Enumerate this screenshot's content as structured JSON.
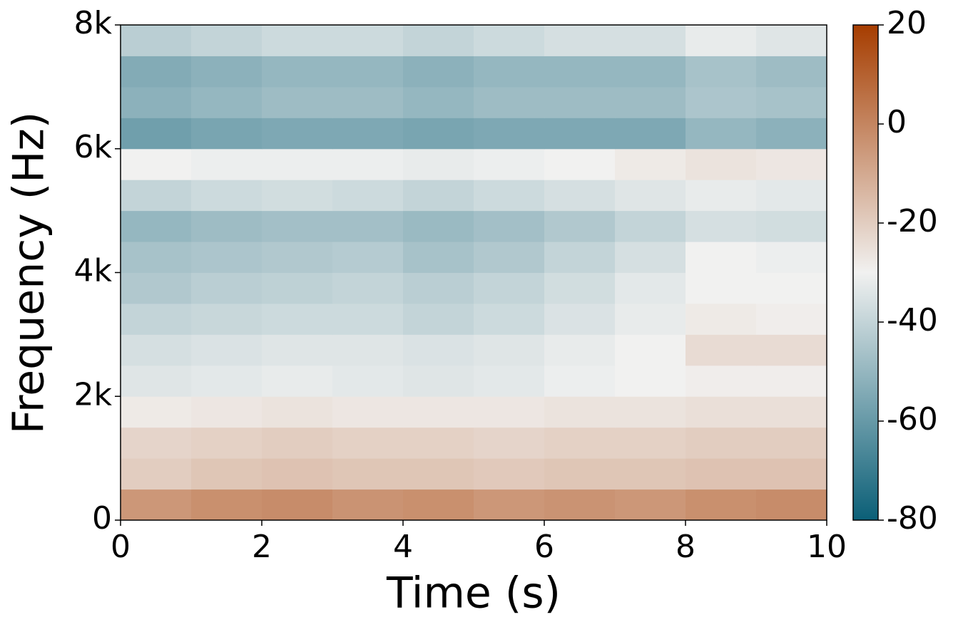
{
  "chart_data": {
    "type": "heatmap",
    "xlabel": "Time (s)",
    "ylabel": "Frequency (Hz)",
    "x": [
      0.5,
      1.5,
      2.5,
      3.5,
      4.5,
      5.5,
      6.5,
      7.5,
      8.5,
      9.5
    ],
    "y": [
      250,
      750,
      1250,
      1750,
      2250,
      2750,
      3250,
      3750,
      4250,
      4750,
      5250,
      5750,
      6250,
      6750,
      7250,
      7750
    ],
    "z": [
      [
        -5,
        -3,
        -2,
        -4,
        -3,
        -5,
        -4,
        -5,
        -3,
        -2
      ],
      [
        -20,
        -18,
        -17,
        -18,
        -18,
        -19,
        -18,
        -18,
        -17,
        -17
      ],
      [
        -22,
        -21,
        -20,
        -21,
        -21,
        -22,
        -21,
        -21,
        -20,
        -20
      ],
      [
        -28,
        -27,
        -26,
        -27,
        -27,
        -27,
        -26,
        -26,
        -25,
        -25
      ],
      [
        -34,
        -33,
        -32,
        -33,
        -34,
        -33,
        -31,
        -30,
        -29,
        -29
      ],
      [
        -36,
        -35,
        -34,
        -34,
        -35,
        -34,
        -32,
        -30,
        -24,
        -24
      ],
      [
        -40,
        -39,
        -38,
        -38,
        -40,
        -38,
        -35,
        -32,
        -28,
        -29
      ],
      [
        -44,
        -42,
        -41,
        -40,
        -42,
        -40,
        -37,
        -33,
        -30,
        -30
      ],
      [
        -46,
        -45,
        -44,
        -43,
        -46,
        -44,
        -40,
        -36,
        -30,
        -31
      ],
      [
        -50,
        -48,
        -47,
        -47,
        -49,
        -47,
        -44,
        -40,
        -36,
        -37
      ],
      [
        -40,
        -38,
        -37,
        -38,
        -40,
        -38,
        -36,
        -34,
        -32,
        -33
      ],
      [
        -30,
        -31,
        -31,
        -31,
        -32,
        -31,
        -30,
        -28,
        -26,
        -27
      ],
      [
        -58,
        -56,
        -55,
        -55,
        -56,
        -55,
        -55,
        -55,
        -50,
        -52
      ],
      [
        -52,
        -50,
        -48,
        -48,
        -50,
        -48,
        -48,
        -48,
        -45,
        -46
      ],
      [
        -54,
        -52,
        -50,
        -50,
        -52,
        -50,
        -50,
        -50,
        -46,
        -48
      ],
      [
        -42,
        -40,
        -38,
        -38,
        -40,
        -38,
        -36,
        -36,
        -32,
        -34
      ]
    ],
    "xlim": [
      0,
      10
    ],
    "xticks": [
      0,
      2,
      4,
      6,
      8,
      10
    ],
    "ylim": [
      0,
      8000
    ],
    "yticks": [
      0,
      {
        "value": 2000,
        "label": "2k"
      },
      {
        "value": 4000,
        "label": "4k"
      },
      {
        "value": 6000,
        "label": "6k"
      },
      {
        "value": 8000,
        "label": "8k"
      }
    ],
    "zlim": [
      -80,
      20
    ],
    "zticks": [
      20,
      0,
      -20,
      -40,
      -60,
      -80
    ],
    "colormap": [
      "#0b5f77",
      "#f1f1f0",
      "#a63d00"
    ]
  }
}
